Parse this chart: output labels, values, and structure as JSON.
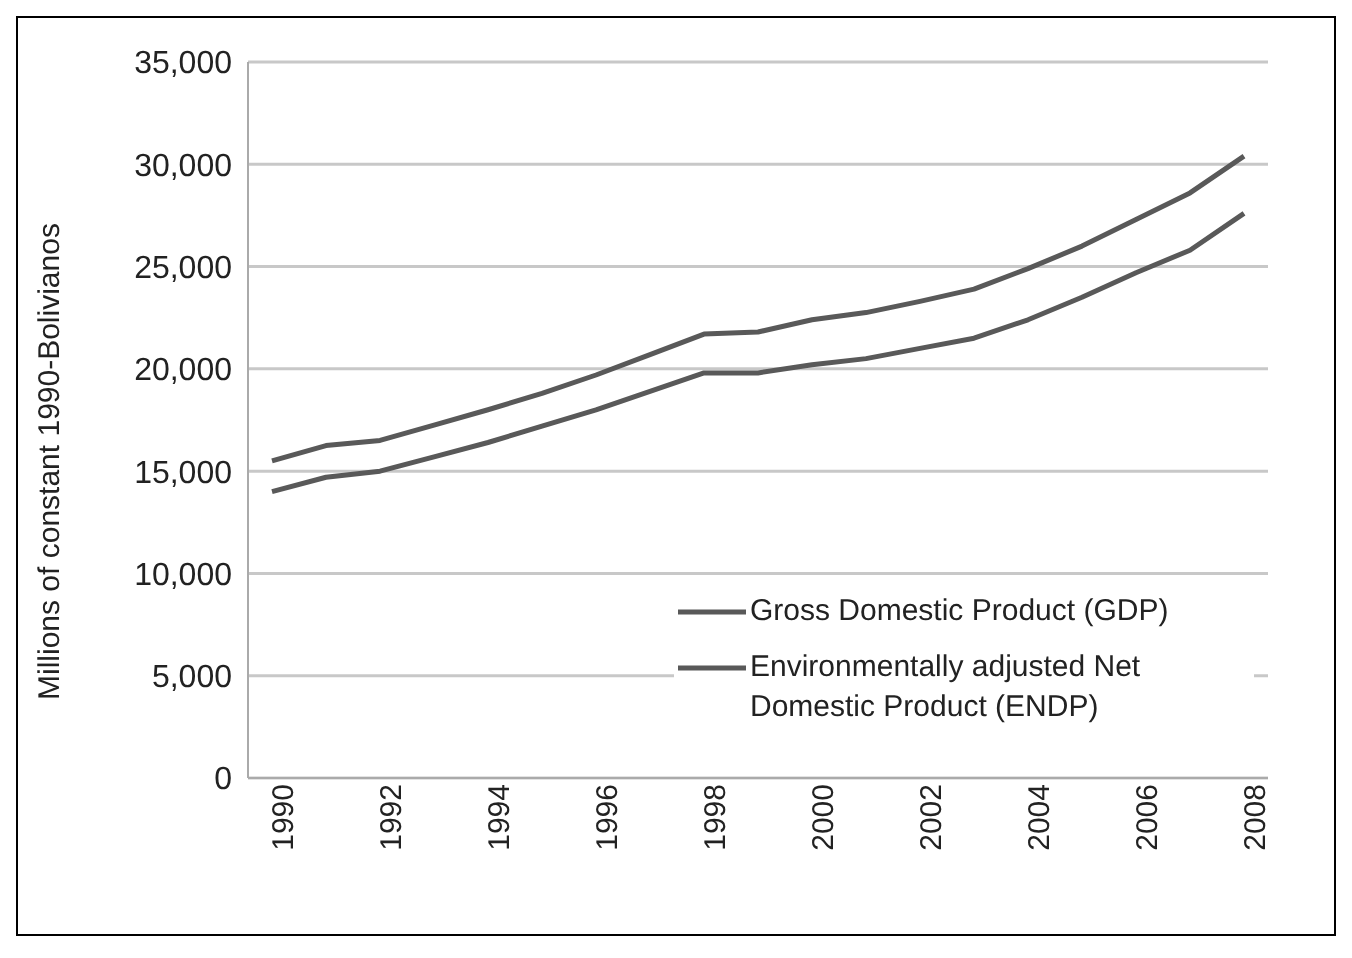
{
  "chart_data": {
    "type": "line",
    "ylabel": "Millions of constant 1990-Bolivianos",
    "categories": [
      "1990",
      null,
      "1992",
      null,
      "1994",
      null,
      "1996",
      null,
      "1998",
      null,
      "2000",
      null,
      "2002",
      null,
      "2004",
      null,
      "2006",
      null,
      "2008"
    ],
    "series": [
      {
        "name": "Gross Domestic Product (GDP)",
        "color": "#595959",
        "values": [
          15500,
          16250,
          16500,
          17250,
          18000,
          18800,
          19700,
          20700,
          21700,
          21800,
          22400,
          22750,
          23300,
          23900,
          24900,
          26000,
          27300,
          28600,
          30400
        ]
      },
      {
        "name": "Environmentally adjusted Net Domestic Product (ENDP)",
        "color": "#595959",
        "values": [
          14000,
          14700,
          15000,
          15700,
          16400,
          17200,
          18000,
          18900,
          19800,
          19800,
          20200,
          20500,
          21000,
          21500,
          22400,
          23500,
          24700,
          25800,
          27600
        ]
      }
    ],
    "ylim": [
      0,
      35000
    ],
    "yticks": [
      0,
      {
        "value": 5000,
        "label": "5,000"
      },
      {
        "value": 10000,
        "label": "10,000"
      },
      {
        "value": 15000,
        "label": "15,000"
      },
      {
        "value": 20000,
        "label": "20,000"
      },
      {
        "value": 25000,
        "label": "25,000"
      },
      {
        "value": 30000,
        "label": "30,000"
      },
      {
        "value": 35000,
        "label": "35,000"
      }
    ],
    "grid": "y",
    "legend": "bottom right",
    "marker": "none",
    "line_style": "solid"
  }
}
